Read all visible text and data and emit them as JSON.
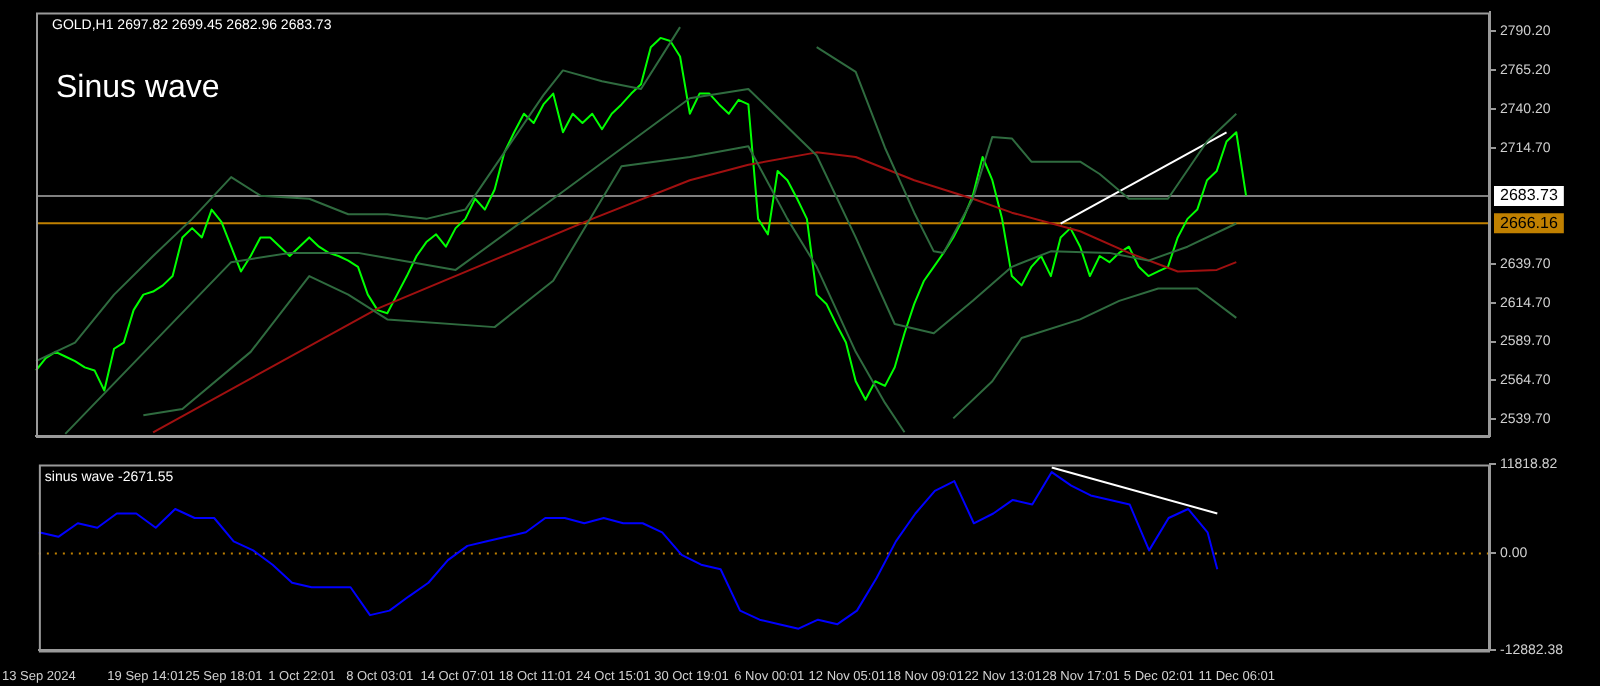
{
  "chart_data": [
    {
      "type": "line",
      "title": "Sinus wave",
      "annotations": [
        "GOLD,H1 2697.82 2699.45 2682.96 2683.73"
      ],
      "categories": [
        null,
        null,
        null,
        null,
        null,
        null,
        null,
        null,
        null,
        null,
        null,
        null,
        null,
        null,
        null,
        null,
        null,
        null,
        null,
        null,
        null,
        null,
        null,
        null,
        null,
        null,
        null,
        null,
        null,
        null,
        null,
        null,
        null,
        null,
        null,
        null,
        null,
        null,
        null,
        null,
        null,
        null,
        null,
        null,
        null,
        null,
        null,
        null,
        null,
        null,
        null,
        null,
        null,
        null,
        null,
        null,
        null,
        null,
        null,
        null,
        null,
        null,
        null,
        null,
        null,
        null,
        null,
        null,
        null,
        null,
        null,
        null,
        null,
        null,
        null,
        null,
        null,
        null,
        null,
        null,
        null,
        null,
        null,
        null,
        null,
        null,
        null,
        null,
        null,
        null,
        null,
        null,
        null,
        null,
        null,
        null,
        null,
        null,
        null,
        null,
        null,
        null,
        null,
        null,
        null,
        null,
        null,
        null,
        null,
        null,
        null,
        null,
        null,
        null,
        null,
        null,
        null,
        null,
        null,
        null,
        null,
        null,
        null,
        null,
        null,
        null,
        null,
        null,
        null,
        null,
        null,
        null,
        null,
        null,
        null,
        null,
        null,
        null,
        null,
        null,
        null,
        null,
        null,
        null,
        null,
        null,
        null,
        null,
        null,
        null
      ],
      "ylim": [
        2528.6,
        2802.5
      ],
      "yticks": [
        {
          "value": 2539.7,
          "label": "2539.70"
        },
        {
          "value": 2564.7,
          "label": "2564.70"
        },
        {
          "value": 2589.7,
          "label": "2589.70"
        },
        {
          "value": 2614.7,
          "label": "2614.70"
        },
        {
          "value": 2639.7,
          "label": "2639.70"
        },
        {
          "value": 2714.7,
          "label": "2714.70"
        },
        {
          "value": 2740.2,
          "label": "2740.20"
        },
        {
          "value": 2765.2,
          "label": "2765.20"
        },
        {
          "value": 2790.2,
          "label": "2790.20"
        }
      ],
      "tick_labels": "y",
      "grid": false,
      "legend": false,
      "marker": "none",
      "line_style": "solid",
      "ref_lines": [
        {
          "axis": "y",
          "value": 2683.73,
          "label": "2683.73",
          "color": "#808080"
        },
        {
          "axis": "y",
          "value": 2666.16,
          "label": "2666.16",
          "color": "#c08000"
        }
      ],
      "series": [
        {
          "type": "line",
          "color": "#2f6b3f",
          "values": [
            2577,
            null,
            null,
            null,
            2589,
            null,
            null,
            null,
            2620,
            null,
            null,
            null,
            2645,
            null,
            null,
            null,
            2669,
            null,
            null,
            null,
            2696,
            null,
            null,
            2684,
            null,
            null,
            null,
            null,
            2682,
            null,
            null,
            null,
            2672,
            null,
            null,
            null,
            2672,
            null,
            null,
            null,
            2669,
            null,
            null,
            null,
            2675,
            null,
            null,
            null,
            2712,
            null,
            null,
            null,
            2749,
            null,
            2765,
            null,
            null,
            null,
            2758,
            null,
            null,
            null,
            2753,
            null,
            null,
            null,
            2793,
            null,
            null,
            null,
            null,
            null,
            null,
            null,
            null,
            null,
            null,
            null,
            null,
            null,
            null,
            null,
            null,
            null,
            null,
            null,
            null,
            null,
            null,
            null,
            null,
            null,
            null,
            null,
            null,
            null,
            null,
            null,
            null,
            null,
            null,
            null,
            null,
            null,
            null,
            null,
            null,
            null,
            null,
            null,
            null,
            null,
            null,
            null,
            null,
            null,
            null,
            null,
            null,
            null,
            null,
            null,
            null,
            null,
            null,
            null,
            null,
            null,
            null,
            null,
            null,
            null,
            null,
            null,
            null,
            null,
            null,
            null,
            null,
            null,
            null,
            null,
            null,
            null,
            null,
            null,
            null,
            null,
            null,
            null
          ]
        },
        {
          "type": "line",
          "color": "#2f6b3f",
          "values": [
            null,
            null,
            null,
            null,
            null,
            null,
            null,
            null,
            null,
            null,
            null,
            null,
            null,
            null,
            null,
            null,
            null,
            null,
            null,
            null,
            null,
            null,
            null,
            null,
            null,
            null,
            null,
            null,
            null,
            null,
            null,
            null,
            null,
            null,
            null,
            null,
            null,
            null,
            null,
            null,
            null,
            null,
            null,
            null,
            null,
            null,
            null,
            null,
            null,
            null,
            null,
            null,
            null,
            null,
            null,
            null,
            null,
            null,
            null,
            null,
            null,
            null,
            null,
            null,
            null,
            null,
            null,
            null,
            null,
            null,
            null,
            null,
            null,
            null,
            null,
            null,
            null,
            null,
            null,
            null,
            2780,
            null,
            null,
            null,
            2764,
            null,
            null,
            2715,
            null,
            null,
            2673,
            null,
            2648,
            2647,
            null,
            null,
            2682,
            null,
            2722,
            null,
            2721,
            null,
            2706,
            null,
            null,
            null,
            null,
            2706,
            null,
            2698,
            null,
            null,
            2682,
            null,
            null,
            null,
            2682,
            null,
            null,
            null,
            2719,
            null,
            null,
            2737,
            null,
            null,
            null,
            null,
            null,
            null,
            null,
            null,
            null,
            null,
            null,
            null,
            null,
            null,
            null,
            null,
            null,
            null,
            null,
            null,
            null,
            null,
            null,
            null,
            null,
            null
          ]
        },
        {
          "type": "line",
          "color": "#2f6b3f",
          "values": [
            null,
            null,
            null,
            2530,
            null,
            null,
            null,
            null,
            null,
            null,
            null,
            null,
            null,
            null,
            null,
            null,
            null,
            null,
            null,
            null,
            2641,
            null,
            null,
            null,
            null,
            null,
            2647,
            null,
            null,
            null,
            null,
            null,
            null,
            2647,
            null,
            null,
            null,
            null,
            null,
            null,
            null,
            null,
            null,
            2636,
            null,
            null,
            null,
            null,
            null,
            null,
            null,
            null,
            null,
            2682,
            null,
            null,
            null,
            null,
            null,
            null,
            null,
            null,
            null,
            null,
            null,
            null,
            null,
            2747,
            null,
            null,
            null,
            null,
            null,
            2753,
            null,
            null,
            null,
            null,
            null,
            null,
            2710,
            null,
            null,
            null,
            2657,
            null,
            null,
            null,
            2601,
            null,
            null,
            null,
            2595,
            null,
            null,
            null,
            2616,
            null,
            null,
            null,
            2638,
            null,
            null,
            null,
            2648,
            null,
            null,
            null,
            null,
            null,
            2647,
            null,
            null,
            null,
            2642,
            null,
            null,
            null,
            2651,
            null,
            null,
            null,
            null,
            2666,
            null,
            null,
            null,
            null,
            null,
            null,
            null,
            null,
            null,
            null,
            null,
            null,
            null,
            null,
            null,
            null,
            null,
            null,
            null,
            null,
            null,
            null,
            null,
            null,
            null,
            null
          ]
        },
        {
          "type": "line",
          "color": "#2f6b3f",
          "values": [
            null,
            null,
            null,
            null,
            null,
            null,
            null,
            null,
            null,
            null,
            null,
            2542,
            null,
            null,
            null,
            2546,
            null,
            null,
            null,
            null,
            null,
            null,
            2583,
            null,
            null,
            null,
            null,
            null,
            2632,
            null,
            null,
            null,
            2620,
            null,
            null,
            null,
            2604,
            null,
            null,
            null,
            null,
            null,
            null,
            null,
            null,
            null,
            null,
            2599,
            null,
            null,
            null,
            null,
            null,
            2629,
            null,
            null,
            null,
            null,
            null,
            null,
            2703,
            null,
            null,
            null,
            null,
            null,
            null,
            2709,
            null,
            null,
            null,
            null,
            null,
            2716,
            null,
            null,
            null,
            2669,
            null,
            null,
            2638,
            null,
            null,
            null,
            2583,
            null,
            null,
            2550,
            null,
            2531,
            null,
            null,
            null,
            null,
            null,
            null,
            null,
            null,
            null,
            null,
            null,
            null,
            null,
            null,
            null,
            null,
            null,
            null,
            null,
            null,
            null,
            null,
            null,
            null,
            null,
            null,
            null,
            null,
            null,
            null,
            null,
            null,
            null,
            null,
            null,
            null,
            null,
            null,
            null,
            null,
            null,
            null,
            null,
            null,
            null,
            null,
            null,
            null,
            null,
            null,
            null,
            null,
            null,
            null,
            null,
            null,
            null,
            null,
            null,
            null
          ]
        },
        {
          "type": "line",
          "color": "#2f6b3f",
          "values": [
            null,
            null,
            null,
            null,
            null,
            null,
            null,
            null,
            null,
            null,
            null,
            null,
            null,
            null,
            null,
            null,
            null,
            null,
            null,
            null,
            null,
            null,
            null,
            null,
            null,
            null,
            null,
            null,
            null,
            null,
            null,
            null,
            null,
            null,
            null,
            null,
            null,
            null,
            null,
            null,
            null,
            null,
            null,
            null,
            null,
            null,
            null,
            null,
            null,
            null,
            null,
            null,
            null,
            null,
            null,
            null,
            null,
            null,
            null,
            null,
            null,
            null,
            null,
            null,
            null,
            null,
            null,
            null,
            null,
            null,
            null,
            null,
            null,
            null,
            null,
            null,
            null,
            null,
            null,
            null,
            null,
            null,
            null,
            null,
            null,
            null,
            null,
            null,
            null,
            null,
            null,
            null,
            null,
            null,
            2540,
            null,
            null,
            null,
            2564,
            null,
            null,
            2592,
            null,
            null,
            null,
            null,
            null,
            2604,
            null,
            null,
            null,
            2616,
            null,
            null,
            null,
            2624,
            null,
            null,
            null,
            2624,
            null,
            null,
            null,
            2605,
            null,
            null,
            null,
            null,
            null,
            null,
            null,
            null,
            null,
            null,
            null,
            null,
            null,
            null,
            null,
            null,
            null,
            null,
            null,
            null,
            null,
            null,
            null,
            null,
            null,
            null
          ]
        },
        {
          "type": "line",
          "color": "#a01010",
          "values": [
            null,
            null,
            null,
            null,
            null,
            null,
            null,
            null,
            null,
            null,
            null,
            null,
            2531,
            null,
            null,
            null,
            null,
            null,
            null,
            null,
            null,
            null,
            null,
            null,
            null,
            null,
            null,
            null,
            null,
            null,
            null,
            null,
            null,
            null,
            null,
            2611,
            null,
            null,
            null,
            null,
            null,
            null,
            null,
            null,
            null,
            null,
            null,
            null,
            null,
            null,
            null,
            null,
            null,
            null,
            null,
            null,
            null,
            2669,
            null,
            null,
            null,
            null,
            null,
            null,
            null,
            null,
            null,
            2694,
            null,
            null,
            null,
            null,
            null,
            2704,
            null,
            null,
            null,
            null,
            null,
            null,
            2712,
            null,
            null,
            null,
            2709,
            null,
            null,
            null,
            null,
            null,
            2694,
            null,
            null,
            null,
            null,
            null,
            2682,
            null,
            null,
            null,
            2673,
            null,
            null,
            null,
            null,
            null,
            null,
            2661,
            null,
            null,
            null,
            null,
            2647,
            null,
            null,
            null,
            null,
            2635,
            null,
            null,
            null,
            2636,
            null,
            2641,
            null,
            null,
            null,
            null,
            null,
            null,
            null,
            null,
            null,
            null,
            null,
            null,
            null,
            null,
            null,
            null,
            null,
            null,
            null,
            null,
            null,
            null,
            null,
            null,
            null,
            null
          ]
        },
        {
          "type": "line",
          "color": "#00ff00",
          "values": [
            2571,
            2579,
            2583,
            2580,
            2577,
            2573,
            2571,
            2558,
            2585,
            2589,
            2610,
            2620,
            2622,
            2626,
            2632,
            2657,
            2663,
            2657,
            2675,
            2667,
            2651,
            2635,
            2645,
            2657,
            2657,
            2651,
            2645,
            2651,
            2657,
            2651,
            2647,
            2645,
            2642,
            2638,
            2620,
            2610,
            2608,
            2620,
            2632,
            2645,
            2654,
            2659,
            2651,
            2663,
            2669,
            2682,
            2675,
            2688,
            2712,
            2725,
            2737,
            2731,
            2743,
            2750,
            2725,
            2737,
            2731,
            2737,
            2727,
            2737,
            2743,
            2750,
            2756,
            2780,
            2786,
            2784,
            2774,
            2737,
            2750,
            2750,
            2743,
            2737,
            2746,
            2743,
            2669,
            2659,
            2700,
            2694,
            2682,
            2669,
            2620,
            2614,
            2601,
            2589,
            2564,
            2552,
            2564,
            2561,
            2573,
            2595,
            2614,
            2629,
            2638,
            2647,
            2657,
            2669,
            2684,
            2709,
            2694,
            2669,
            2632,
            2626,
            2638,
            2645,
            2632,
            2657,
            2663,
            2651,
            2632,
            2645,
            2641,
            2647,
            2651,
            2638,
            2632,
            2635,
            2638,
            2657,
            2669,
            2675,
            2694,
            2700,
            2719,
            2725,
            2684,
            null,
            null,
            null,
            null,
            null,
            null,
            null,
            null,
            null,
            null,
            null,
            null,
            null,
            null,
            null,
            null,
            null,
            null,
            null,
            null,
            null,
            null,
            null,
            null,
            null
          ]
        },
        {
          "type": "line",
          "color": "#ffffff",
          "values": [
            null,
            null,
            null,
            null,
            null,
            null,
            null,
            null,
            null,
            null,
            null,
            null,
            null,
            null,
            null,
            null,
            null,
            null,
            null,
            null,
            null,
            null,
            null,
            null,
            null,
            null,
            null,
            null,
            null,
            null,
            null,
            null,
            null,
            null,
            null,
            null,
            null,
            null,
            null,
            null,
            null,
            null,
            null,
            null,
            null,
            null,
            null,
            null,
            null,
            null,
            null,
            null,
            null,
            null,
            null,
            null,
            null,
            null,
            null,
            null,
            null,
            null,
            null,
            null,
            null,
            null,
            null,
            null,
            null,
            null,
            null,
            null,
            null,
            null,
            null,
            null,
            null,
            null,
            null,
            null,
            null,
            null,
            null,
            null,
            null,
            null,
            null,
            null,
            null,
            null,
            null,
            null,
            null,
            null,
            null,
            null,
            null,
            null,
            null,
            null,
            null,
            null,
            null,
            null,
            null,
            2666,
            null,
            null,
            null,
            null,
            null,
            null,
            null,
            null,
            null,
            null,
            null,
            null,
            null,
            null,
            null,
            null,
            2725,
            null,
            null,
            null,
            null,
            null,
            null,
            null,
            null,
            null,
            null,
            null,
            null,
            null,
            null,
            null,
            null,
            null,
            null,
            null,
            null,
            null,
            null,
            null,
            null,
            null,
            null,
            null
          ]
        }
      ]
    },
    {
      "type": "line",
      "title": "sinus wave -2671.55",
      "categories": [
        "13 Sep 2024",
        null,
        null,
        null,
        null,
        null,
        null,
        null,
        null,
        null,
        null,
        "19 Sep 14:01",
        null,
        null,
        null,
        null,
        null,
        null,
        null,
        "25 Sep 18:01",
        null,
        null,
        null,
        null,
        null,
        null,
        null,
        "1 Oct 22:01",
        null,
        null,
        null,
        null,
        null,
        null,
        null,
        "8 Oct 03:01",
        null,
        null,
        null,
        null,
        null,
        null,
        null,
        "14 Oct 07:01",
        null,
        null,
        null,
        null,
        null,
        null,
        null,
        "18 Oct 11:01",
        null,
        null,
        null,
        null,
        null,
        null,
        null,
        "24 Oct 15:01",
        null,
        null,
        null,
        null,
        null,
        null,
        null,
        "30 Oct 19:01",
        null,
        null,
        null,
        null,
        null,
        null,
        null,
        "6 Nov 00:01",
        null,
        null,
        null,
        null,
        null,
        null,
        null,
        "12 Nov 05:01",
        null,
        null,
        null,
        null,
        null,
        null,
        null,
        "18 Nov 09:01",
        null,
        null,
        null,
        null,
        null,
        null,
        null,
        "22 Nov 13:01",
        null,
        null,
        null,
        null,
        null,
        null,
        null,
        "28 Nov 17:01",
        null,
        null,
        null,
        null,
        null,
        null,
        null,
        "5 Dec 02:01",
        null,
        null,
        null,
        null,
        null,
        null,
        null,
        "11 Dec 06:01",
        null,
        null,
        null,
        null,
        null,
        null,
        null,
        null,
        null,
        null,
        null,
        null,
        null,
        null,
        null,
        null,
        null,
        null,
        null,
        null,
        null,
        null,
        null,
        null,
        null,
        null
      ],
      "ylim": [
        -12882.38,
        11818.82
      ],
      "yticks": [
        -12882.38,
        {
          "value": 0,
          "label": "0.00"
        },
        11818.82
      ],
      "grid": false,
      "legend": false,
      "marker": "none",
      "line_style": "solid",
      "ref_lines": [
        {
          "axis": "y",
          "value": 0,
          "color": "#c08000",
          "line_style": "dotted"
        }
      ],
      "series": [
        {
          "type": "line",
          "color": "#0000ff",
          "values": [
            2800,
            null,
            2200,
            null,
            4000,
            null,
            3400,
            null,
            5300,
            null,
            5300,
            null,
            3400,
            null,
            5900,
            null,
            4700,
            null,
            4700,
            null,
            1600,
            null,
            400,
            null,
            -1500,
            null,
            -3900,
            null,
            -4500,
            null,
            -4500,
            null,
            -4500,
            null,
            -8200,
            null,
            -7600,
            null,
            -5700,
            null,
            -3900,
            null,
            -900,
            null,
            1000,
            null,
            1600,
            null,
            2200,
            null,
            2800,
            null,
            4700,
            null,
            4700,
            null,
            4000,
            null,
            4700,
            null,
            4000,
            null,
            4000,
            null,
            2800,
            null,
            -200,
            null,
            -1500,
            null,
            -2100,
            null,
            -7600,
            null,
            -8800,
            null,
            -9400,
            null,
            -10000,
            null,
            -8800,
            null,
            -9400,
            null,
            -7600,
            null,
            -3300,
            null,
            1600,
            null,
            5300,
            null,
            8300,
            null,
            9600,
            null,
            4000,
            null,
            5300,
            null,
            7100,
            null,
            6500,
            null,
            10800,
            null,
            9000,
            null,
            7700,
            null,
            7100,
            null,
            6500,
            null,
            400,
            null,
            4700,
            null,
            5900,
            null,
            2800,
            -2100,
            null,
            null,
            null,
            null,
            null,
            null,
            null,
            null,
            null,
            null,
            null,
            null,
            null,
            null,
            null,
            null,
            null,
            null,
            null,
            null,
            null,
            null,
            null,
            null,
            null,
            null,
            null,
            null
          ]
        },
        {
          "type": "line",
          "color": "#ffffff",
          "values": [
            null,
            null,
            null,
            null,
            null,
            null,
            null,
            null,
            null,
            null,
            null,
            null,
            null,
            null,
            null,
            null,
            null,
            null,
            null,
            null,
            null,
            null,
            null,
            null,
            null,
            null,
            null,
            null,
            null,
            null,
            null,
            null,
            null,
            null,
            null,
            null,
            null,
            null,
            null,
            null,
            null,
            null,
            null,
            null,
            null,
            null,
            null,
            null,
            null,
            null,
            null,
            null,
            null,
            null,
            null,
            null,
            null,
            null,
            null,
            null,
            null,
            null,
            null,
            null,
            null,
            null,
            null,
            null,
            null,
            null,
            null,
            null,
            null,
            null,
            null,
            null,
            null,
            null,
            null,
            null,
            null,
            null,
            null,
            null,
            null,
            null,
            null,
            null,
            null,
            null,
            null,
            null,
            null,
            null,
            null,
            null,
            null,
            null,
            null,
            null,
            null,
            null,
            null,
            null,
            11400,
            null,
            null,
            null,
            null,
            null,
            null,
            null,
            null,
            null,
            null,
            null,
            null,
            null,
            null,
            null,
            null,
            5300,
            null,
            null,
            null,
            null,
            null,
            null,
            null,
            null,
            null,
            null,
            null,
            null,
            null,
            null,
            null,
            null,
            null,
            null,
            null,
            null,
            null,
            null,
            null,
            null,
            null,
            null,
            null,
            null
          ]
        }
      ]
    }
  ]
}
